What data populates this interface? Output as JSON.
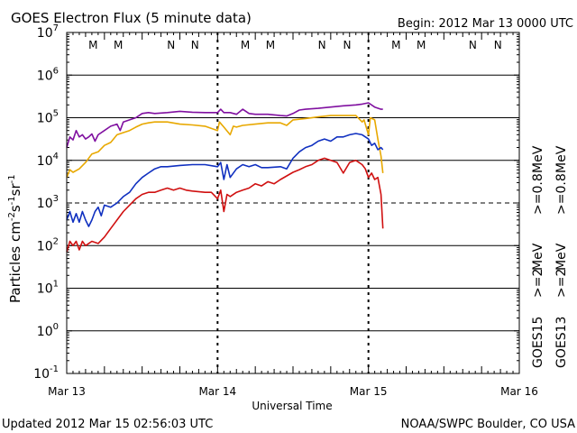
{
  "chart_data": {
    "type": "line",
    "title": "GOES Electron Flux (5 minute data)",
    "begin": "Begin: 2012 Mar 13 0000 UTC",
    "updated": "Updated 2012 Mar 15 02:56:03 UTC",
    "credit": "NOAA/SWPC Boulder, CO USA",
    "xlabel": "Universal Time",
    "ylabel": "Particles cm",
    "ylabel_sup1": "-2",
    "ylabel_mid": "s",
    "ylabel_sup2": "-1",
    "ylabel_mid2": "sr",
    "ylabel_sup3": "-1",
    "y_scale": "log",
    "ylim_exp": [
      -1,
      7
    ],
    "xlim_hours": [
      0,
      72
    ],
    "x_ticks": [
      {
        "label": "Mar 13",
        "hour": 0
      },
      {
        "label": "Mar 14",
        "hour": 24
      },
      {
        "label": "Mar 15",
        "hour": 48
      },
      {
        "label": "Mar 16",
        "hour": 72
      }
    ],
    "y_ticks": [
      {
        "base": "10",
        "exp": "7",
        "value": 7
      },
      {
        "base": "10",
        "exp": "6",
        "value": 6
      },
      {
        "base": "10",
        "exp": "5",
        "value": 5
      },
      {
        "base": "10",
        "exp": "4",
        "value": 4
      },
      {
        "base": "10",
        "exp": "3",
        "value": 3
      },
      {
        "base": "10",
        "exp": "2",
        "value": 2
      },
      {
        "base": "10",
        "exp": "1",
        "value": 1
      },
      {
        "base": "10",
        "exp": "0",
        "value": 0
      },
      {
        "base": "10",
        "exp": "-1",
        "value": -1
      }
    ],
    "threshold_exp": 3,
    "markers": [
      {
        "label": "M",
        "hour": 4.2,
        "color": "#d01010"
      },
      {
        "label": "M",
        "hour": 8.2,
        "color": "#1030c0"
      },
      {
        "label": "N",
        "hour": 16.6,
        "color": "#d01010"
      },
      {
        "label": "N",
        "hour": 20.4,
        "color": "#1030c0"
      },
      {
        "label": "M",
        "hour": 28.4,
        "color": "#d01010"
      },
      {
        "label": "M",
        "hour": 32.4,
        "color": "#1030c0"
      },
      {
        "label": "N",
        "hour": 40.6,
        "color": "#d01010"
      },
      {
        "label": "N",
        "hour": 44.6,
        "color": "#1030c0"
      },
      {
        "label": "M",
        "hour": 52.4,
        "color": "#d01010"
      },
      {
        "label": "M",
        "hour": 56.4,
        "color": "#1030c0"
      },
      {
        "label": "N",
        "hour": 64.6,
        "color": "#d01010"
      },
      {
        "label": "N",
        "hour": 68.6,
        "color": "#1030c0"
      }
    ],
    "legend": [
      {
        "sat": "GOES15",
        "energy": ">=2",
        "unit": "MeV",
        "color": "#1030c0"
      },
      {
        "sat": "GOES13",
        "energy": ">=2",
        "unit": "MeV",
        "color": "#d01010"
      },
      {
        "energy": ">=0.8",
        "unit": "MeV",
        "color": "#8010a0"
      },
      {
        "energy": ">=0.8",
        "unit": "MeV",
        "color": "#e8a800"
      }
    ],
    "series": [
      {
        "color": "#8010a0",
        "points": [
          [
            0,
            4.3
          ],
          [
            0.5,
            4.55
          ],
          [
            1,
            4.48
          ],
          [
            1.5,
            4.7
          ],
          [
            2,
            4.55
          ],
          [
            2.5,
            4.6
          ],
          [
            3,
            4.5
          ],
          [
            3.5,
            4.55
          ],
          [
            4,
            4.62
          ],
          [
            4.5,
            4.45
          ],
          [
            5,
            4.6
          ],
          [
            6,
            4.7
          ],
          [
            7,
            4.8
          ],
          [
            8,
            4.85
          ],
          [
            8.5,
            4.7
          ],
          [
            9,
            4.9
          ],
          [
            10,
            4.95
          ],
          [
            11,
            5.0
          ],
          [
            12,
            5.1
          ],
          [
            13,
            5.12
          ],
          [
            14,
            5.1
          ],
          [
            16,
            5.12
          ],
          [
            18,
            5.15
          ],
          [
            20,
            5.13
          ],
          [
            22,
            5.12
          ],
          [
            24,
            5.12
          ],
          [
            24.5,
            5.2
          ],
          [
            25,
            5.12
          ],
          [
            26,
            5.12
          ],
          [
            27,
            5.08
          ],
          [
            28,
            5.2
          ],
          [
            29,
            5.1
          ],
          [
            30,
            5.08
          ],
          [
            32,
            5.08
          ],
          [
            34,
            5.05
          ],
          [
            35,
            5.04
          ],
          [
            36,
            5.1
          ],
          [
            37,
            5.18
          ],
          [
            38,
            5.2
          ],
          [
            40,
            5.22
          ],
          [
            42,
            5.25
          ],
          [
            44,
            5.28
          ],
          [
            46,
            5.3
          ],
          [
            47,
            5.32
          ],
          [
            48,
            5.35
          ],
          [
            49,
            5.25
          ],
          [
            50,
            5.2
          ],
          [
            50.3,
            5.2
          ]
        ]
      },
      {
        "color": "#e8a800",
        "points": [
          [
            0,
            3.6
          ],
          [
            0.5,
            3.78
          ],
          [
            1,
            3.72
          ],
          [
            2,
            3.8
          ],
          [
            3,
            3.95
          ],
          [
            4,
            4.15
          ],
          [
            5,
            4.2
          ],
          [
            6,
            4.35
          ],
          [
            7,
            4.42
          ],
          [
            8,
            4.6
          ],
          [
            9,
            4.65
          ],
          [
            10,
            4.7
          ],
          [
            11,
            4.78
          ],
          [
            12,
            4.85
          ],
          [
            13,
            4.88
          ],
          [
            14,
            4.9
          ],
          [
            16,
            4.9
          ],
          [
            18,
            4.85
          ],
          [
            20,
            4.83
          ],
          [
            22,
            4.8
          ],
          [
            24,
            4.7
          ],
          [
            24.3,
            4.9
          ],
          [
            25,
            4.78
          ],
          [
            26,
            4.6
          ],
          [
            26.5,
            4.8
          ],
          [
            27,
            4.78
          ],
          [
            28,
            4.82
          ],
          [
            30,
            4.85
          ],
          [
            32,
            4.88
          ],
          [
            34,
            4.88
          ],
          [
            35,
            4.82
          ],
          [
            36,
            4.95
          ],
          [
            38,
            4.98
          ],
          [
            40,
            5.02
          ],
          [
            42,
            5.05
          ],
          [
            44,
            5.05
          ],
          [
            46,
            5.05
          ],
          [
            47,
            4.9
          ],
          [
            47.3,
            4.95
          ],
          [
            48,
            4.6
          ],
          [
            48.3,
            5.0
          ],
          [
            49,
            4.95
          ],
          [
            49.5,
            4.5
          ],
          [
            50,
            4.1
          ],
          [
            50.3,
            3.7
          ]
        ]
      },
      {
        "color": "#1030c0",
        "points": [
          [
            0,
            2.6
          ],
          [
            0.5,
            2.8
          ],
          [
            1,
            2.55
          ],
          [
            1.5,
            2.75
          ],
          [
            2,
            2.55
          ],
          [
            2.5,
            2.8
          ],
          [
            3,
            2.6
          ],
          [
            3.5,
            2.45
          ],
          [
            4,
            2.6
          ],
          [
            4.5,
            2.8
          ],
          [
            5,
            2.9
          ],
          [
            5.5,
            2.7
          ],
          [
            6,
            2.95
          ],
          [
            7,
            2.9
          ],
          [
            8,
            3.0
          ],
          [
            9,
            3.15
          ],
          [
            10,
            3.25
          ],
          [
            11,
            3.45
          ],
          [
            12,
            3.6
          ],
          [
            13,
            3.7
          ],
          [
            14,
            3.8
          ],
          [
            15,
            3.85
          ],
          [
            16,
            3.85
          ],
          [
            18,
            3.88
          ],
          [
            20,
            3.9
          ],
          [
            22,
            3.9
          ],
          [
            24,
            3.85
          ],
          [
            24.5,
            3.95
          ],
          [
            25,
            3.55
          ],
          [
            25.5,
            3.9
          ],
          [
            26,
            3.6
          ],
          [
            27,
            3.8
          ],
          [
            28,
            3.9
          ],
          [
            29,
            3.85
          ],
          [
            30,
            3.9
          ],
          [
            31,
            3.83
          ],
          [
            32,
            3.83
          ],
          [
            34,
            3.85
          ],
          [
            35,
            3.8
          ],
          [
            36,
            4.05
          ],
          [
            37,
            4.2
          ],
          [
            38,
            4.3
          ],
          [
            39,
            4.35
          ],
          [
            40,
            4.45
          ],
          [
            41,
            4.5
          ],
          [
            42,
            4.45
          ],
          [
            43,
            4.55
          ],
          [
            44,
            4.55
          ],
          [
            45,
            4.6
          ],
          [
            46,
            4.63
          ],
          [
            47,
            4.6
          ],
          [
            48,
            4.5
          ],
          [
            48.5,
            4.35
          ],
          [
            49,
            4.4
          ],
          [
            49.5,
            4.25
          ],
          [
            50,
            4.3
          ],
          [
            50.3,
            4.25
          ]
        ]
      },
      {
        "color": "#d01010",
        "points": [
          [
            0,
            1.85
          ],
          [
            0.5,
            2.1
          ],
          [
            1,
            2.0
          ],
          [
            1.5,
            2.1
          ],
          [
            2,
            1.9
          ],
          [
            2.5,
            2.1
          ],
          [
            3,
            2.0
          ],
          [
            4,
            2.1
          ],
          [
            5,
            2.05
          ],
          [
            6,
            2.2
          ],
          [
            7,
            2.4
          ],
          [
            8,
            2.6
          ],
          [
            9,
            2.8
          ],
          [
            10,
            2.95
          ],
          [
            11,
            3.1
          ],
          [
            12,
            3.2
          ],
          [
            13,
            3.25
          ],
          [
            14,
            3.25
          ],
          [
            15,
            3.3
          ],
          [
            16,
            3.35
          ],
          [
            17,
            3.3
          ],
          [
            18,
            3.35
          ],
          [
            19,
            3.3
          ],
          [
            20,
            3.28
          ],
          [
            22,
            3.25
          ],
          [
            23,
            3.25
          ],
          [
            24,
            3.1
          ],
          [
            24.5,
            3.3
          ],
          [
            25,
            2.8
          ],
          [
            25.5,
            3.2
          ],
          [
            26,
            3.15
          ],
          [
            27,
            3.25
          ],
          [
            28,
            3.3
          ],
          [
            29,
            3.35
          ],
          [
            30,
            3.45
          ],
          [
            31,
            3.4
          ],
          [
            32,
            3.5
          ],
          [
            33,
            3.45
          ],
          [
            34,
            3.55
          ],
          [
            36,
            3.72
          ],
          [
            37,
            3.78
          ],
          [
            38,
            3.85
          ],
          [
            39,
            3.9
          ],
          [
            40,
            4.0
          ],
          [
            41,
            4.05
          ],
          [
            42,
            4.0
          ],
          [
            43,
            3.95
          ],
          [
            44,
            3.7
          ],
          [
            45,
            3.95
          ],
          [
            46,
            4.0
          ],
          [
            47,
            3.9
          ],
          [
            47.5,
            3.8
          ],
          [
            48,
            3.6
          ],
          [
            48.5,
            3.7
          ],
          [
            49,
            3.55
          ],
          [
            49.5,
            3.6
          ],
          [
            50,
            3.2
          ],
          [
            50.3,
            2.4
          ]
        ]
      }
    ]
  }
}
